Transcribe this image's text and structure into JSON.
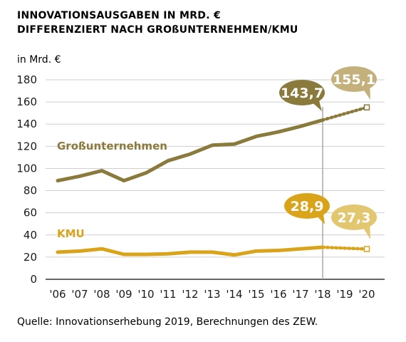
{
  "header": {
    "title_line1": "INNOVATIONSAUSGABEN IN MRD. €",
    "title_line2": "DIFFERENZIERT NACH GROßUNTERNEHMEN/KMU"
  },
  "footer": {
    "source": "Quelle: Innovationserhebung 2019, Berechnungen des ZEW."
  },
  "colors": {
    "gross": "#8a7a3c",
    "gross_forecast_bubble": "#c4b07a",
    "kmu": "#d9a31a",
    "kmu_forecast_bubble": "#e2c670",
    "grid": "#cfcfcf",
    "axis": "#333333",
    "marker_line": "#a8a8a8",
    "text": "#1a1a1a"
  },
  "chart_data": {
    "type": "line",
    "ylabel": "in Mrd. €",
    "ylim": [
      0,
      180
    ],
    "yticks": [
      0,
      20,
      40,
      60,
      80,
      100,
      120,
      140,
      160,
      180
    ],
    "grid": true,
    "categories": [
      "'06",
      "'07",
      "'08",
      "'09",
      "'10",
      "'11",
      "'12",
      "'13",
      "'14",
      "'15",
      "'16",
      "'17",
      "'18",
      "'19",
      "'20"
    ],
    "series": [
      {
        "name": "Großunternehmen",
        "values": [
          89,
          93,
          98,
          89,
          96,
          107,
          113,
          121,
          122,
          129,
          133,
          138,
          143.7,
          null,
          null
        ],
        "forecast": [
          null,
          null,
          null,
          null,
          null,
          null,
          null,
          null,
          null,
          null,
          null,
          null,
          143.7,
          149.4,
          155.1
        ]
      },
      {
        "name": "KMU",
        "values": [
          24.5,
          25.5,
          27.5,
          22.5,
          22.5,
          23,
          24.5,
          24.5,
          22,
          25.5,
          26,
          27.5,
          28.9,
          null,
          null
        ],
        "forecast": [
          null,
          null,
          null,
          null,
          null,
          null,
          null,
          null,
          null,
          null,
          null,
          null,
          28.9,
          28.1,
          27.3
        ]
      }
    ],
    "annotations": [
      {
        "series": "Großunternehmen",
        "x": "'18",
        "value": "143,7",
        "kind": "actual"
      },
      {
        "series": "Großunternehmen",
        "x": "'20",
        "value": "155,1",
        "kind": "forecast"
      },
      {
        "series": "KMU",
        "x": "'18",
        "value": "28,9",
        "kind": "actual"
      },
      {
        "series": "KMU",
        "x": "'20",
        "value": "27,3",
        "kind": "forecast"
      }
    ],
    "marker_at": "'18"
  }
}
